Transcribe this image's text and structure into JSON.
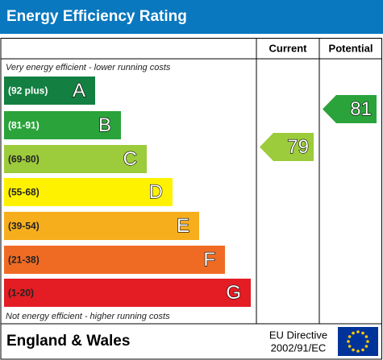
{
  "header": {
    "title": "Energy Efficiency Rating"
  },
  "columns": {
    "current": "Current",
    "potential": "Potential"
  },
  "top_note": "Very energy efficient - lower running costs",
  "bottom_note": "Not energy efficient - higher running costs",
  "bands": [
    {
      "range": "(92 plus)",
      "letter": "A",
      "color": "#138042"
    },
    {
      "range": "(81-91)",
      "letter": "B",
      "color": "#2aa33b"
    },
    {
      "range": "(69-80)",
      "letter": "C",
      "color": "#9ccb3b"
    },
    {
      "range": "(55-68)",
      "letter": "D",
      "color": "#fff200"
    },
    {
      "range": "(39-54)",
      "letter": "E",
      "color": "#f7ae1d"
    },
    {
      "range": "(21-38)",
      "letter": "F",
      "color": "#ef6b24"
    },
    {
      "range": "(1-20)",
      "letter": "G",
      "color": "#e31d23"
    }
  ],
  "ratings": {
    "current": 79,
    "potential": 81
  },
  "footer": {
    "region": "England & Wales",
    "directive_line1": "EU Directive",
    "directive_line2": "2002/91/EC"
  }
}
